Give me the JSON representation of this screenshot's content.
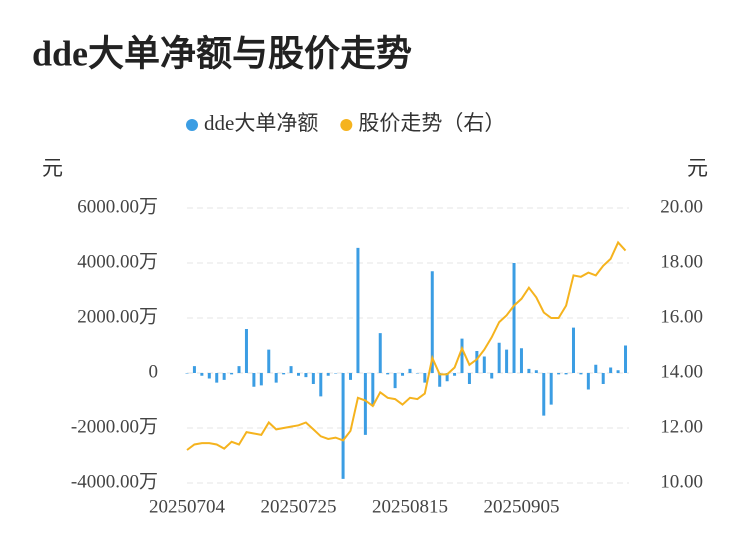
{
  "chart_data": {
    "type": "bar-line",
    "title": "dde大单净额与股价走势",
    "y_label": "元",
    "y2_label": "元",
    "categories": [
      "20250704",
      null,
      null,
      null,
      null,
      null,
      null,
      null,
      null,
      null,
      null,
      null,
      null,
      null,
      null,
      "20250725",
      null,
      null,
      null,
      null,
      null,
      null,
      null,
      null,
      null,
      null,
      null,
      null,
      null,
      null,
      "20250815",
      null,
      null,
      null,
      null,
      null,
      null,
      null,
      null,
      null,
      null,
      null,
      null,
      null,
      null,
      "20250905",
      null,
      null,
      null,
      null,
      null,
      null,
      null,
      null,
      null,
      null,
      null,
      null,
      null,
      null
    ],
    "series": [
      {
        "name": "dde大单净额",
        "type": "bar",
        "color": "#3b9de3",
        "values": [
          0,
          250,
          -100,
          -200,
          -350,
          -250,
          -50,
          250,
          1600,
          -500,
          -450,
          850,
          -350,
          -50,
          250,
          -100,
          -150,
          -400,
          -850,
          -100,
          0,
          -3850,
          -250,
          4550,
          -2250,
          -1200,
          1450,
          -50,
          -550,
          -100,
          150,
          0,
          -350,
          3700,
          -500,
          -300,
          -100,
          1250,
          -400,
          800,
          600,
          -200,
          1100,
          850,
          4000,
          900,
          150,
          100,
          -1550,
          -1150,
          -50,
          -50,
          1650,
          -50,
          -600,
          300,
          -400,
          200,
          100,
          1000
        ]
      },
      {
        "name": "股价走势（右）",
        "type": "line",
        "axis": "y2",
        "color": "#f5b31e",
        "values": [
          11.2,
          11.4,
          11.45,
          11.45,
          11.4,
          11.25,
          11.5,
          11.4,
          11.85,
          11.8,
          11.75,
          12.2,
          11.95,
          12.0,
          12.05,
          12.1,
          12.2,
          11.95,
          11.7,
          11.6,
          11.65,
          11.55,
          11.9,
          13.1,
          13.0,
          12.8,
          13.3,
          13.1,
          13.05,
          12.85,
          13.1,
          13.05,
          13.25,
          14.55,
          13.95,
          13.95,
          14.2,
          14.9,
          14.3,
          14.5,
          14.85,
          15.3,
          15.85,
          16.1,
          16.45,
          16.7,
          17.1,
          16.75,
          16.2,
          16.0,
          16.0,
          16.45,
          17.55,
          17.5,
          17.65,
          17.55,
          17.9,
          18.15,
          18.75,
          18.45
        ]
      }
    ],
    "ylim": [
      -4000,
      6000
    ],
    "yticks": [
      {
        "value": -4000,
        "label": "-4000.00万"
      },
      {
        "value": -2000,
        "label": "-2000.00万"
      },
      0,
      {
        "value": 2000,
        "label": "2000.00万"
      },
      {
        "value": 4000,
        "label": "4000.00万"
      },
      {
        "value": 6000,
        "label": "6000.00万"
      }
    ],
    "y2lim": [
      10,
      20
    ],
    "y2ticks": [
      {
        "value": 10,
        "label": "10.00"
      },
      {
        "value": 12,
        "label": "12.00"
      },
      {
        "value": 14,
        "label": "14.00"
      },
      {
        "value": 16,
        "label": "16.00"
      },
      {
        "value": 18,
        "label": "18.00"
      },
      {
        "value": 20,
        "label": "20.00"
      }
    ],
    "grid": true,
    "legend": "top"
  }
}
